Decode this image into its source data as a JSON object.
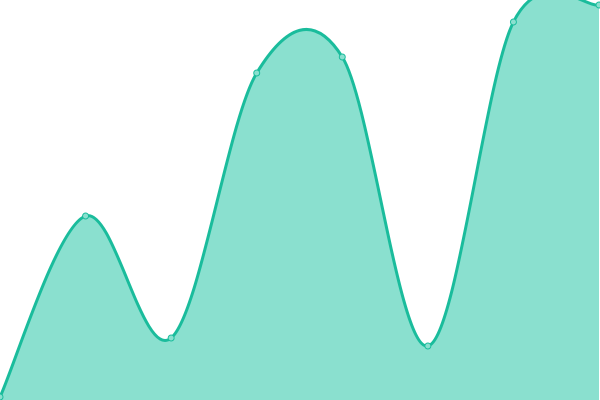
{
  "chart_data": {
    "type": "area",
    "x": [
      0,
      1,
      2,
      3,
      4,
      5,
      6,
      7
    ],
    "values": [
      3,
      184,
      62,
      327,
      343,
      54,
      378,
      395
    ],
    "ylim": [
      0,
      400
    ],
    "grid": false,
    "curve": "smooth",
    "colors": {
      "line": "#1abc9c",
      "fill": "#8ae0cf",
      "point": "#8ae0cf"
    }
  }
}
